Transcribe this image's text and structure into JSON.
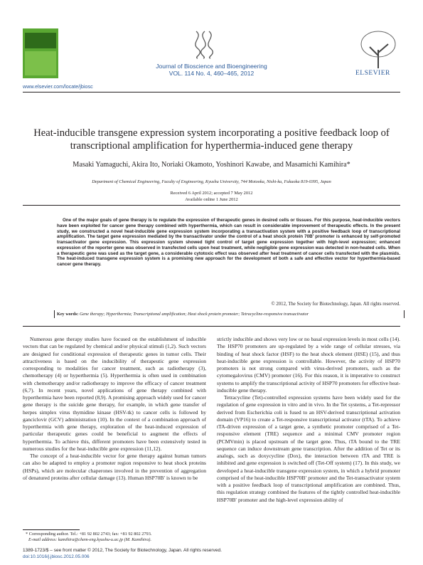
{
  "header": {
    "journal_name": "Journal of Bioscience and Bioengineering",
    "volume": "VOL. 114 No. 4, 460–465, 2012",
    "publisher": "ELSEVIER",
    "url": "www.elsevier.com/locate/jbiosc"
  },
  "article": {
    "title": "Heat-inducible transgene expression system incorporating a positive feedback loop of transcriptional amplification for hyperthermia-induced gene therapy",
    "authors": "Masaki Yamaguchi, Akira Ito, Noriaki Okamoto, Yoshinori Kawabe, and Masamichi Kamihira*",
    "affiliation": "Department of Chemical Engineering, Faculty of Engineering, Kyushu University, 744 Motooka, Nishi-ku, Fukuoka 819-0395, Japan",
    "received": "Received 6 April 2012; accepted 7 May 2012",
    "available": "Available online 1 June 2012",
    "abstract": "One of the major goals of gene therapy is to regulate the expression of therapeutic genes in desired cells or tissues. For this purpose, heat-inducible vectors have been exploited for cancer gene therapy combined with hyperthermia, which can result in considerable improvement of therapeutic effects. In the present study, we constructed a novel heat-inducible gene expression system incorporating a transactivation system with a positive feedback loop of transcriptional amplification. The target gene expression mediated by the transactivator under the control of a heat shock protein 70B′ promoter is enhanced by self-promoted transactivator gene expression. This expression system showed tight control of target gene expression together with high-level expression; enhanced expression of the reporter gene was observed in transfected cells upon heat treatment, while negligible gene expression was detected in non-heated cells. When a therapeutic gene was used as the target gene, a considerable cytotoxic effect was observed after heat treatment of cancer cells transfected with the plasmids. The heat-induced transgene expression system is a promising new approach for the development of both a safe and effective vector for hyperthermia-based cancer gene therapy.",
    "copyright": "© 2012, The Society for Biotechnology, Japan. All rights reserved.",
    "keywords_label": "Key words:",
    "keywords": "Gene therapy; Hyperthermia; Transcriptional amplification; Heat shock protein promoter; Tetracycline-responsive transactivator"
  },
  "body": {
    "left": [
      "Numerous gene therapy studies have focused on the establishment of inducible vectors that can be regulated by chemical and/or physical stimuli (1,2). Such vectors are designed for conditional expression of therapeutic genes in tumor cells. Their attractiveness is based on the inducibility of therapeutic gene expression corresponding to modalities for cancer treatment, such as radiotherapy (3), chemotherapy (4) or hyperthermia (5). Hyperthermia is often used in combination with chemotherapy and/or radiotherapy to improve the efficacy of cancer treatment (6,7). In recent years, novel applications of gene therapy combined with hyperthermia have been reported (8,9). A promising approach widely used for cancer gene therapy is the suicide gene therapy, for example, in which gene transfer of herpes simplex virus thymidine kinase (HSV-tk) to cancer cells is followed by ganciclovir (GCV) administration (10). In the context of a combination approach of hyperthermia with gene therapy, exploration of the heat-induced expression of particular therapeutic genes could be beneficial to augment the effects of hyperthermia. To achieve this, different promoters have been extensively tested in numerous studies for the heat-inducible gene expression (11,12).",
      "The concept of a heat-inducible vector for gene therapy against human tumors can also be adapted to employ a promoter region responsive to heat shock proteins (HSPs), which are molecular chaperones involved in the prevention of aggregation of denatured proteins after cellular damage (13). Human HSP70B′ is known to be"
    ],
    "right": [
      "strictly inducible and shows very low or no basal expression levels in most cells (14). The HSP70 promoters are up-regulated by a wide range of cellular stresses, via binding of heat shock factor (HSF) to the heat shock element (HSE) (15), and thus heat-inducible gene expression is controllable. However, the activity of HSP70 promoters is not strong compared with virus-derived promoters, such as the cytomegalovirus (CMV) promoter (16). For this reason, it is imperative to construct systems to amplify the transcriptional activity of HSP70 promoters for effective heat-inducible gene therapy.",
      "Tetracycline (Tet)-controlled expression systems have been widely used for the regulation of gene expression in vitro and in vivo. In the Tet systems, a Tet-repressor derived from Escherichia coli is fused to an HSV-derived transcriptional activation domain (VP16) to create a Tet-responsive transcriptional activator (tTA). To achieve tTA-driven expression of a target gene, a synthetic promoter comprised of a Tet-responsive element (TRE) sequence and a minimal CMV promoter region (PCMVmin) is placed upstream of the target gene. Thus, tTA bound to the TRE sequence can induce downstream gene transcription. After the addition of Tet or its analogs, such as doxycycline (Dox), the interaction between tTA and TRE is inhibited and gene expression is switched off (Tet-Off system) (17). In this study, we developed a heat-inducible transgene expression system, in which a hybrid promoter comprised of the heat-inducible HSP70B′ promoter and the Tet-transactivator system with a positive feedback loop of transcriptional amplification are combined. Thus, this regulation strategy combined the features of the tightly controlled heat-inducible HSP70B′ promoter and the high-level expression ability of"
    ]
  },
  "footnote": {
    "corresponding": "* Corresponding author. Tel.: +81 92 802 2743; fax: +81 92 802 2793.",
    "email": "E-mail address: kamihira@chem-eng.kyushu-u.ac.jp (M. Kamihira)."
  },
  "footer": {
    "issn": "1389-1723/$ – see front matter © 2012, The Society for Biotechnology, Japan. All rights reserved.",
    "doi": "doi:10.1016/j.jbiosc.2012.05.006"
  }
}
